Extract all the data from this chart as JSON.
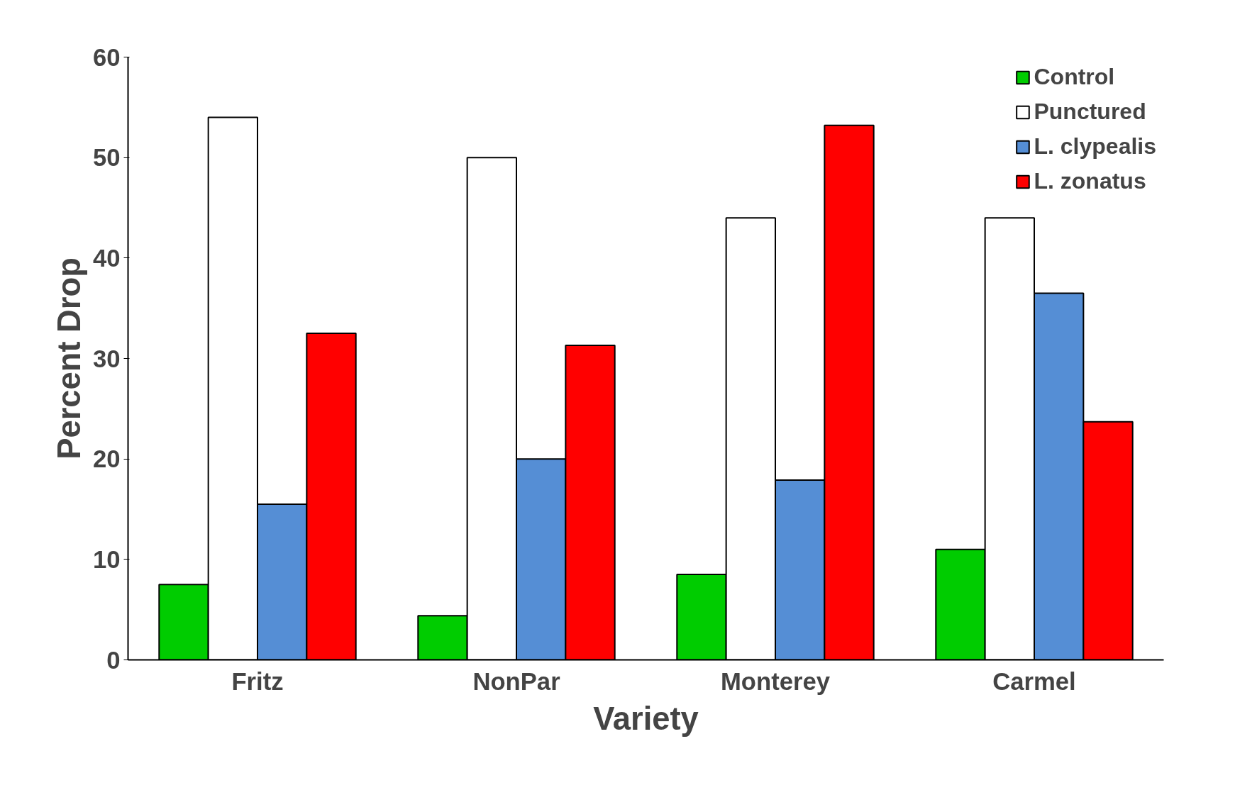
{
  "chart_data": {
    "type": "bar",
    "xlabel": "Variety",
    "ylabel": "Percent Drop",
    "categories": [
      "Fritz",
      "NonPar",
      "Monterey",
      "Carmel"
    ],
    "series": [
      {
        "name": "Control",
        "color": "#00cc00",
        "values": [
          7.5,
          4.4,
          8.5,
          11.0
        ]
      },
      {
        "name": "Punctured",
        "color": "#ffffff",
        "values": [
          54.0,
          50.0,
          44.0,
          44.0
        ]
      },
      {
        "name": "L. clypealis",
        "color": "#558ed5",
        "values": [
          15.5,
          20.0,
          17.9,
          36.5
        ]
      },
      {
        "name": "L. zonatus",
        "color": "#ff0000",
        "values": [
          32.5,
          31.3,
          53.2,
          23.7
        ]
      }
    ],
    "ylim": [
      0,
      60
    ],
    "yticks": [
      0,
      10,
      20,
      30,
      40,
      50,
      60
    ],
    "grid": false,
    "legend": "top right"
  }
}
